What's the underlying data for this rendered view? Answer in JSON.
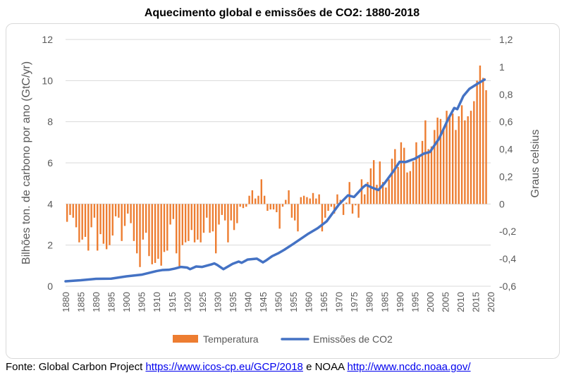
{
  "chart_data": {
    "type": "bar",
    "title": "Aquecimento global e emissões de CO2: 1880-2018",
    "x_ticks": [
      1880,
      1885,
      1890,
      1895,
      1900,
      1905,
      1910,
      1915,
      1920,
      1925,
      1930,
      1935,
      1940,
      1945,
      1950,
      1955,
      1960,
      1965,
      1970,
      1975,
      1980,
      1985,
      1990,
      1995,
      2000,
      2005,
      2010,
      2015,
      2020
    ],
    "xlim": [
      1880,
      2020
    ],
    "y_left": {
      "label": "Bilhões ton. de carbono por ano (GtC/yr)",
      "ticks": [
        "0",
        "2",
        "4",
        "6",
        "8",
        "10",
        "12"
      ],
      "lim": [
        0,
        12
      ]
    },
    "y_right": {
      "label": "Graus celsius",
      "ticks": [
        "-0,6",
        "-0,4",
        "-0,2",
        "0",
        "0,2",
        "0,4",
        "0,6",
        "0,8",
        "1",
        "1,2"
      ],
      "lim": [
        -0.6,
        1.2
      ]
    },
    "legend": {
      "placement": "bottom"
    },
    "grid": true,
    "series": [
      {
        "name": "Temperatura",
        "kind": "bar",
        "axis": "right",
        "color": "#ed7d31",
        "x": [
          1880,
          1881,
          1882,
          1883,
          1884,
          1885,
          1886,
          1887,
          1888,
          1889,
          1890,
          1891,
          1892,
          1893,
          1894,
          1895,
          1896,
          1897,
          1898,
          1899,
          1900,
          1901,
          1902,
          1903,
          1904,
          1905,
          1906,
          1907,
          1908,
          1909,
          1910,
          1911,
          1912,
          1913,
          1914,
          1915,
          1916,
          1917,
          1918,
          1919,
          1920,
          1921,
          1922,
          1923,
          1924,
          1925,
          1926,
          1927,
          1928,
          1929,
          1930,
          1931,
          1932,
          1933,
          1934,
          1935,
          1936,
          1937,
          1938,
          1939,
          1940,
          1941,
          1942,
          1943,
          1944,
          1945,
          1946,
          1947,
          1948,
          1949,
          1950,
          1951,
          1952,
          1953,
          1954,
          1955,
          1956,
          1957,
          1958,
          1959,
          1960,
          1961,
          1962,
          1963,
          1964,
          1965,
          1966,
          1967,
          1968,
          1969,
          1970,
          1971,
          1972,
          1973,
          1974,
          1975,
          1976,
          1977,
          1978,
          1979,
          1980,
          1981,
          1982,
          1983,
          1984,
          1985,
          1986,
          1987,
          1988,
          1989,
          1990,
          1991,
          1992,
          1993,
          1994,
          1995,
          1996,
          1997,
          1998,
          1999,
          2000,
          2001,
          2002,
          2003,
          2004,
          2005,
          2006,
          2007,
          2008,
          2009,
          2010,
          2011,
          2012,
          2013,
          2014,
          2015,
          2016,
          2017,
          2018
        ],
        "values": [
          -0.13,
          -0.08,
          -0.1,
          -0.17,
          -0.28,
          -0.26,
          -0.24,
          -0.34,
          -0.17,
          -0.1,
          -0.34,
          -0.22,
          -0.29,
          -0.33,
          -0.3,
          -0.23,
          -0.09,
          -0.1,
          -0.27,
          -0.16,
          -0.07,
          -0.14,
          -0.27,
          -0.36,
          -0.46,
          -0.26,
          -0.21,
          -0.38,
          -0.44,
          -0.43,
          -0.4,
          -0.45,
          -0.35,
          -0.34,
          -0.15,
          -0.11,
          -0.36,
          -0.46,
          -0.3,
          -0.28,
          -0.27,
          -0.19,
          -0.28,
          -0.26,
          -0.28,
          -0.21,
          -0.1,
          -0.21,
          -0.2,
          -0.36,
          -0.15,
          -0.08,
          -0.12,
          -0.28,
          -0.12,
          -0.19,
          -0.14,
          -0.02,
          -0.03,
          -0.02,
          0.06,
          0.1,
          0.04,
          0.06,
          0.18,
          0.06,
          -0.05,
          -0.04,
          -0.04,
          -0.06,
          -0.18,
          -0.02,
          0.03,
          0.1,
          -0.1,
          -0.12,
          -0.2,
          0.05,
          0.06,
          0.05,
          0.04,
          0.08,
          0.04,
          0.07,
          -0.2,
          -0.1,
          -0.05,
          -0.02,
          -0.07,
          0.07,
          0.03,
          -0.08,
          0.01,
          0.16,
          -0.07,
          -0.01,
          -0.1,
          0.18,
          0.07,
          0.16,
          0.26,
          0.32,
          0.14,
          0.31,
          0.16,
          0.12,
          0.18,
          0.33,
          0.4,
          0.27,
          0.45,
          0.41,
          0.23,
          0.24,
          0.31,
          0.45,
          0.35,
          0.46,
          0.61,
          0.4,
          0.42,
          0.54,
          0.63,
          0.62,
          0.54,
          0.68,
          0.64,
          0.66,
          0.54,
          0.64,
          0.72,
          0.61,
          0.64,
          0.68,
          0.75,
          0.9,
          1.01,
          0.92,
          0.83
        ]
      },
      {
        "name": "Emissões de CO2",
        "kind": "line",
        "axis": "left",
        "color": "#4472c4",
        "x": [
          1880,
          1885,
          1890,
          1895,
          1900,
          1905,
          1910,
          1912,
          1914,
          1916,
          1918,
          1920,
          1921,
          1923,
          1925,
          1928,
          1929,
          1930,
          1932,
          1935,
          1937,
          1938,
          1940,
          1943,
          1945,
          1946,
          1948,
          1950,
          1952,
          1955,
          1958,
          1960,
          1963,
          1966,
          1970,
          1973,
          1975,
          1978,
          1979,
          1981,
          1983,
          1985,
          1988,
          1990,
          1992,
          1995,
          1998,
          2000,
          2003,
          2006,
          2008,
          2009,
          2011,
          2013,
          2016,
          2018
        ],
        "values": [
          0.24,
          0.29,
          0.36,
          0.37,
          0.48,
          0.56,
          0.74,
          0.79,
          0.8,
          0.86,
          0.94,
          0.91,
          0.83,
          0.96,
          0.94,
          1.06,
          1.11,
          1.03,
          0.83,
          1.09,
          1.2,
          1.14,
          1.3,
          1.34,
          1.16,
          1.25,
          1.46,
          1.6,
          1.77,
          2.06,
          2.36,
          2.56,
          2.82,
          3.16,
          3.97,
          4.42,
          4.34,
          4.82,
          4.93,
          4.79,
          4.68,
          5.0,
          5.6,
          6.05,
          6.04,
          6.2,
          6.45,
          6.53,
          7.18,
          8.13,
          8.67,
          8.61,
          9.25,
          9.6,
          9.88,
          10.05
        ]
      }
    ]
  },
  "source": {
    "prefix": "Fonte: Global Carbon Project",
    "link1": "https://www.icos-cp.eu/GCP/2018",
    "middle": "e NOAA",
    "link2": "http://www.ncdc.noaa.gov/"
  }
}
